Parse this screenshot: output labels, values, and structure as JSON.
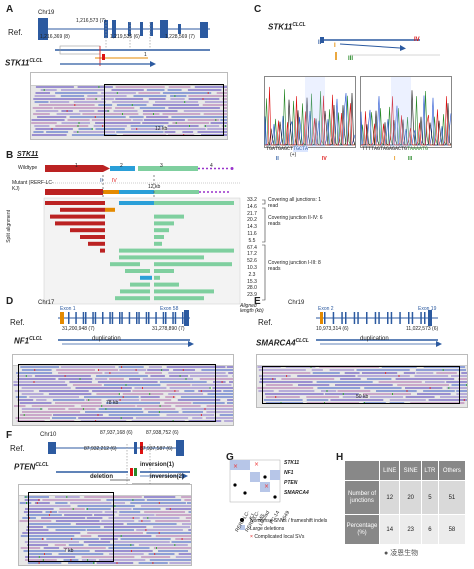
{
  "panels": {
    "A": {
      "letter": "A",
      "chr": "Chr19",
      "ref": "Ref.",
      "gene": "STK11",
      "sup": "CLCL",
      "coords": [
        "1,216,573 (7)",
        "1,216,369 (8)",
        "1,219,536 (6)",
        "1,228,569 (7)"
      ],
      "arrow_label": "1",
      "scale": "12 kb"
    },
    "B": {
      "letter": "B",
      "gene": "STK11",
      "wildtype": "Wildtype",
      "mutant": "Mutant (RERF-LC-KJ)",
      "split": "Split alignment",
      "exons_wt": [
        "1",
        "2",
        "3",
        "4"
      ],
      "roman": [
        "II",
        "IV"
      ],
      "scale": "12 kb",
      "notes": [
        "Covering all junctions: 1 read",
        "Covering junction II-IV: 6 reads",
        "Covering junction I-III: 8 reads"
      ],
      "lengths": [
        "33.2",
        "14.6",
        "21.7",
        "20.2",
        "14.3",
        "11.6",
        "5.5",
        "67.4",
        "17.2",
        "52.6",
        "10.3",
        "2.3",
        "15.3",
        "28.0",
        "23.9"
      ],
      "aligned": "Aligned length (kb)"
    },
    "C": {
      "letter": "C",
      "gene": "STK11",
      "sup": "CLCL",
      "roman": [
        "II",
        "IV",
        "I",
        "III"
      ],
      "seq1": "TGATGAGCT",
      "seq_ins": "TGCTA",
      "seq2": "TGCTACAT",
      "seq3": "TTTTAGTAGAGACTG",
      "seq4": "TAAAATG",
      "plus": "(+)"
    },
    "D": {
      "letter": "D",
      "chr": "Chr17",
      "ref": "Ref.",
      "exon_start": "Exon 1",
      "exon_end": "Exon 58",
      "coord1": "31,200,948 (7)",
      "coord2": "31,278,890 (7)",
      "gene": "NF1",
      "sup": "CLCL",
      "dup": "duplication",
      "scale": "78 kb"
    },
    "E": {
      "letter": "E",
      "chr": "Chr19",
      "ref": "Ref.",
      "exon_start": "Exon 2",
      "exon_end": "Exon 19",
      "coord1": "10,973,314 (6)",
      "coord2": "11,022,573 (6)",
      "gene": "SMARCA4",
      "sup": "CLCL",
      "dup": "duplication",
      "scale": "50 kb"
    },
    "F": {
      "letter": "F",
      "chr": "Chr10",
      "ref": "Ref.",
      "coords": [
        "87,937,168 (6)",
        "87,938,752 (6)",
        "87,932,212 (6)",
        "87,937,587 (6)"
      ],
      "gene": "PTEN",
      "sup": "CLCL",
      "deletion": "deletion",
      "inv1": "inversion(1)",
      "inv2": "inversion(2)",
      "scale": "7 kb"
    },
    "G": {
      "letter": "G",
      "genes": [
        "STK11",
        "NF1",
        "PTEN",
        "SMARCA4"
      ],
      "cells": [
        "RERF-LC-KJ",
        "RERF-LC-MS",
        "LC2/ad",
        "PC-14",
        "A549"
      ],
      "legend": [
        "Nonsense SNVs / frameshift indels",
        "Large deletions",
        "Complicated local SVs"
      ]
    },
    "H": {
      "letter": "H",
      "cols": [
        "LINE",
        "SINE",
        "LTR",
        "Others"
      ],
      "rows": [
        {
          "label": "Number of junctions",
          "values": [
            "12",
            "20",
            "5",
            "51"
          ]
        },
        {
          "label": "Percentage (%)",
          "values": [
            "14",
            "23",
            "6",
            "58"
          ]
        }
      ]
    }
  },
  "watermark": "凌恩生物"
}
